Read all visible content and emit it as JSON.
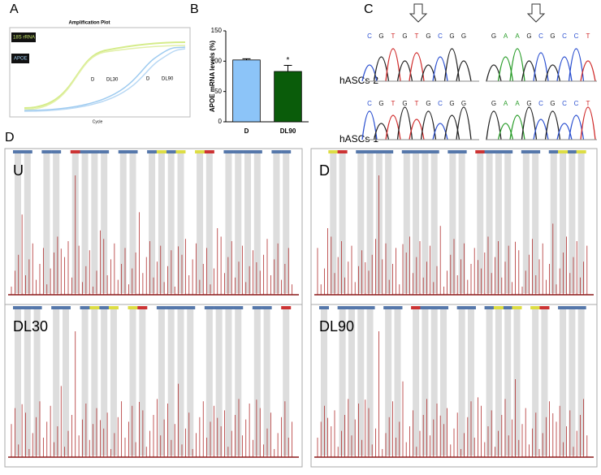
{
  "panel_labels": [
    "A",
    "B",
    "C",
    "D"
  ],
  "panel_a": {
    "title": "Amplification Plot",
    "legend": [
      "18S rRNA",
      "APOE"
    ],
    "curve_labels": [
      "D",
      "DL30",
      "D",
      "DL90"
    ],
    "x_label": "Cycle"
  },
  "panel_c": {
    "rows": [
      {
        "label": "hASCs-2",
        "left": [
          "C",
          "G",
          "T",
          "G",
          "T",
          "G",
          "C",
          "G",
          "G"
        ],
        "right": [
          "G",
          "A",
          "A",
          "G",
          "C",
          "G",
          "C",
          "C",
          "T"
        ]
      },
      {
        "label": "hASCs-1",
        "left": [
          "C",
          "G",
          "T",
          "G",
          "T",
          "G",
          "C",
          "G",
          "G"
        ],
        "right": [
          "G",
          "A",
          "A",
          "G",
          "C",
          "G",
          "C",
          "C",
          "T"
        ]
      }
    ]
  },
  "panel_d": {
    "subpanels": [
      "U",
      "D",
      "DL30",
      "DL90"
    ]
  },
  "chart_data": {
    "type": "bar",
    "y_label": "APOE mRNA levels (%)",
    "categories": [
      "D",
      "DL90"
    ],
    "values": [
      102,
      83
    ],
    "errors": [
      2,
      10
    ],
    "colors": [
      "#8cc4f8",
      "#0a5c0a"
    ],
    "annotations": [
      "",
      "*"
    ],
    "ylim": [
      0,
      150
    ],
    "yticks": [
      0,
      50,
      100,
      150
    ]
  }
}
